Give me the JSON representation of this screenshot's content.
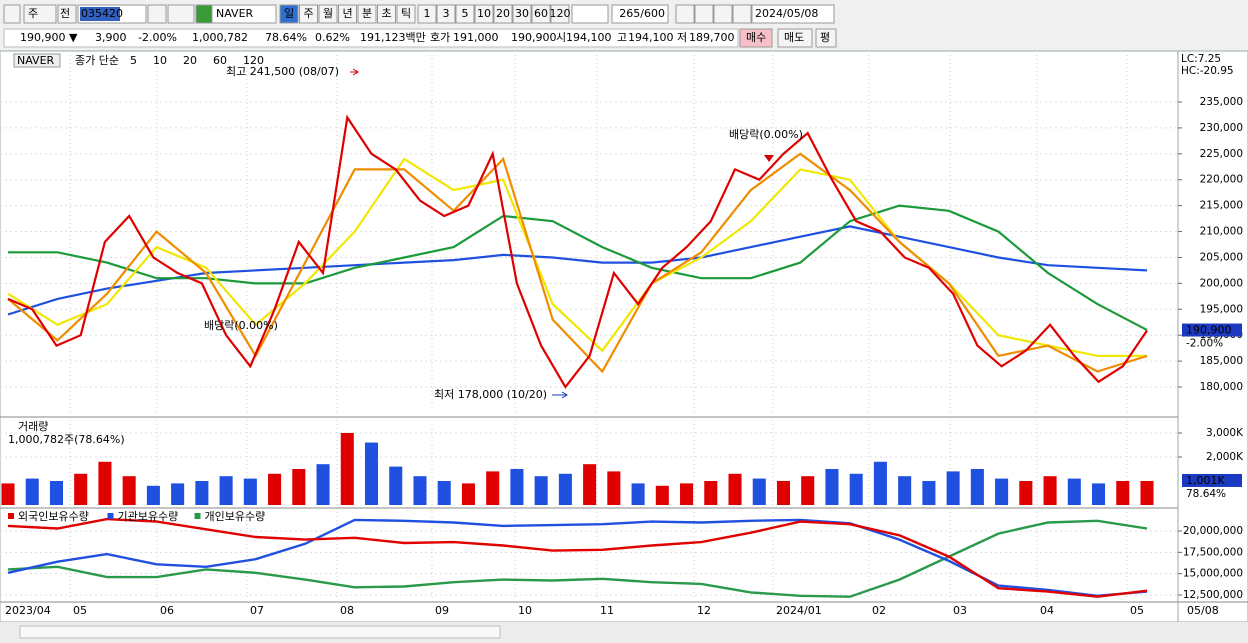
{
  "toolbar": {
    "period": "주",
    "range": "전",
    "code": "035420",
    "name": "NAVER",
    "intervals": [
      "일",
      "주",
      "월",
      "년",
      "분",
      "초",
      "틱"
    ],
    "numbers": [
      "1",
      "3",
      "5",
      "10",
      "20",
      "30",
      "60",
      "120"
    ],
    "count": "265/600",
    "date": "2024/05/08"
  },
  "quote": {
    "price": "190,900 ▼",
    "change": "3,900",
    "change_pct": "-2.00%",
    "volume": "1,000,782",
    "volume_ratio": "78.64%",
    "turnover": "0.62%",
    "amount": "191,123백만",
    "bid_label": "호가",
    "ask": "191,000",
    "bid": "190,900",
    "open_label": "시",
    "open": "194,100",
    "high_label": "고",
    "high": "194,100",
    "low_label": "저",
    "low": "189,700",
    "buy": "매수",
    "sell": "매도",
    "eval": "평"
  },
  "x_axis": {
    "labels": [
      "2023/04",
      "05",
      "06",
      "07",
      "08",
      "09",
      "10",
      "11",
      "12",
      "2024/01",
      "02",
      "03",
      "04",
      "05",
      "05/08"
    ]
  },
  "chart_data": [
    {
      "type": "line",
      "title": "NAVER",
      "subtitle": "종가 단순",
      "series": [
        {
          "name": "5",
          "color": "#e00000",
          "values": [
            197000,
            195000,
            188000,
            190000,
            208000,
            213000,
            205000,
            202000,
            200000,
            190000,
            184000,
            195000,
            208000,
            202000,
            232000,
            225000,
            222000,
            216000,
            213000,
            215000,
            225000,
            200000,
            188000,
            180000,
            186000,
            202000,
            196000,
            203000,
            207000,
            212000,
            222000,
            220000,
            225000,
            229000,
            220000,
            212000,
            210000,
            205000,
            203000,
            198000,
            188000,
            184000,
            187000,
            192000,
            186000,
            181000,
            184000,
            190900
          ]
        },
        {
          "name": "10",
          "color": "#f08c00",
          "values": [
            197000,
            189000,
            198000,
            210000,
            202000,
            186000,
            204000,
            222000,
            222000,
            214000,
            224000,
            193000,
            183000,
            200000,
            206000,
            218000,
            225000,
            218000,
            208000,
            200000,
            186000,
            188000,
            183000,
            186000
          ]
        },
        {
          "name": "20",
          "color": "#f0e800",
          "values": [
            198000,
            192000,
            196000,
            207000,
            203000,
            192000,
            200000,
            210000,
            224000,
            218000,
            220000,
            196000,
            187000,
            200000,
            205000,
            212000,
            222000,
            220000,
            208000,
            200000,
            190000,
            188000,
            186000,
            186000
          ]
        },
        {
          "name": "60",
          "color": "#1a9a3a",
          "values": [
            206000,
            206000,
            204000,
            201000,
            201000,
            200000,
            200000,
            203000,
            205000,
            207000,
            213000,
            212000,
            207000,
            203000,
            201000,
            201000,
            204000,
            212000,
            215000,
            214000,
            210000,
            202000,
            196000,
            191000
          ]
        },
        {
          "name": "120",
          "color": "#2050e0",
          "values": [
            194000,
            197000,
            199000,
            200500,
            202000,
            202500,
            203000,
            203500,
            204000,
            204500,
            205500,
            205000,
            204000,
            204000,
            205000,
            207000,
            209000,
            211000,
            209000,
            207000,
            205000,
            203500,
            203000,
            202500
          ]
        }
      ],
      "ylim": [
        174600,
        244070
      ],
      "yticks": [
        {
          "value": 180000,
          "label": "180,000"
        },
        {
          "value": 185000,
          "label": "185,000"
        },
        {
          "value": 190000,
          "label": "190,000"
        },
        {
          "value": 195000,
          "label": "195,000"
        },
        {
          "value": 200000,
          "label": "200,000"
        },
        {
          "value": 205000,
          "label": "205,000"
        },
        {
          "value": 210000,
          "label": "210,000"
        },
        {
          "value": 215000,
          "label": "215,000"
        },
        {
          "value": 220000,
          "label": "220,000"
        },
        {
          "value": 225000,
          "label": "225,000"
        },
        {
          "value": 230000,
          "label": "230,000"
        },
        {
          "value": 235000,
          "label": "235,000"
        }
      ],
      "annotations": [
        "최고 241,500 (08/07)",
        "최저 178,000 (10/20)",
        "배당락(0.00%)",
        "배당락(0.00%)"
      ],
      "last_label": {
        "value": 190900,
        "label": "190,900"
      },
      "last_change": "-2.00%",
      "lc": "LC:7.25",
      "hc": "HC:-20.95"
    },
    {
      "type": "bar",
      "title": "거래량",
      "subtitle": "1,000,782주(78.64%)",
      "up_color": "#e00000",
      "down_color": "#2050e0",
      "values": [
        900000,
        1100000,
        1000000,
        1300000,
        1800000,
        1200000,
        800000,
        900000,
        1000000,
        1200000,
        1100000,
        1300000,
        1500000,
        1700000,
        3000000,
        2600000,
        1600000,
        1200000,
        1000000,
        900000,
        1400000,
        1500000,
        1200000,
        1300000,
        1700000,
        1400000,
        900000,
        800000,
        900000,
        1000000,
        1300000,
        1100000,
        1000000,
        1200000,
        1500000,
        1300000,
        1800000,
        1200000,
        1000000,
        1400000,
        1500000,
        1100000,
        1000000,
        1200000,
        1100000,
        900000,
        1000000,
        1000782
      ],
      "ylim": [
        0,
        3540000
      ],
      "yticks": [
        {
          "value": 2000000,
          "label": "2,000K"
        },
        {
          "value": 3000000,
          "label": "3,000K"
        }
      ],
      "last_label": {
        "value": 1000782,
        "label": "1,001K"
      },
      "last_ratio": "78.64%"
    },
    {
      "type": "line",
      "series": [
        {
          "name": "외국인보유수량",
          "color": "#e00000",
          "values": [
            20600000,
            20300000,
            21400000,
            21100000,
            20200000,
            19300000,
            19000000,
            19200000,
            18600000,
            18700000,
            18300000,
            17700000,
            17800000,
            18300000,
            18700000,
            19800000,
            21100000,
            20800000,
            19500000,
            17000000,
            13300000,
            12900000,
            12300000,
            13000000
          ]
        },
        {
          "name": "기관보유수량",
          "color": "#2050e0",
          "values": [
            15100000,
            16400000,
            17300000,
            16100000,
            15800000,
            16700000,
            18500000,
            21300000,
            21200000,
            21000000,
            20600000,
            20700000,
            20800000,
            21100000,
            21000000,
            21200000,
            21300000,
            20900000,
            19000000,
            16500000,
            13600000,
            13100000,
            12400000,
            12900000
          ]
        },
        {
          "name": "개인보유수량",
          "color": "#2a9a4a",
          "values": [
            15500000,
            15800000,
            14600000,
            14600000,
            15500000,
            15100000,
            14300000,
            13400000,
            13500000,
            14000000,
            14300000,
            14200000,
            14400000,
            14000000,
            13800000,
            12800000,
            12400000,
            12300000,
            14300000,
            17000000,
            19700000,
            21000000,
            21200000,
            20300000
          ]
        }
      ],
      "ylim": [
        11913000,
        22230000
      ],
      "yticks": [
        {
          "value": 12500000,
          "label": "12,500,000"
        },
        {
          "value": 15000000,
          "label": "15,000,000"
        },
        {
          "value": 17500000,
          "label": "17,500,000"
        },
        {
          "value": 20000000,
          "label": "20,000,000"
        }
      ]
    }
  ]
}
